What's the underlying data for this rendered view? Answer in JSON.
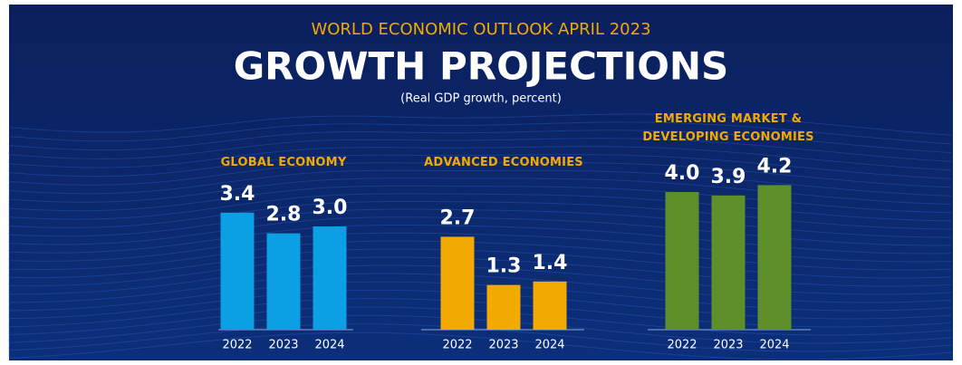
{
  "header": {
    "kicker": "WORLD ECONOMIC OUTLOOK APRIL 2023",
    "title": "GROWTH PROJECTIONS",
    "subtitle": "(Real GDP growth, percent)"
  },
  "chart_data": [
    {
      "type": "bar",
      "title": "GLOBAL ECONOMY",
      "categories": [
        "2022",
        "2023",
        "2024"
      ],
      "values": [
        3.4,
        2.8,
        3.0
      ],
      "value_labels": [
        "3.4",
        "2.8",
        "3.0"
      ],
      "color": "#0b9fe3"
    },
    {
      "type": "bar",
      "title": "ADVANCED ECONOMIES",
      "categories": [
        "2022",
        "2023",
        "2024"
      ],
      "values": [
        2.7,
        1.3,
        1.4
      ],
      "value_labels": [
        "2.7",
        "1.3",
        "1.4"
      ],
      "color": "#f2a900"
    },
    {
      "type": "bar",
      "title": "EMERGING MARKET & DEVELOPING ECONOMIES",
      "categories": [
        "2022",
        "2023",
        "2024"
      ],
      "values": [
        4.0,
        3.9,
        4.2
      ],
      "value_labels": [
        "4.0",
        "3.9",
        "4.2"
      ],
      "color": "#5f8f2b"
    }
  ]
}
